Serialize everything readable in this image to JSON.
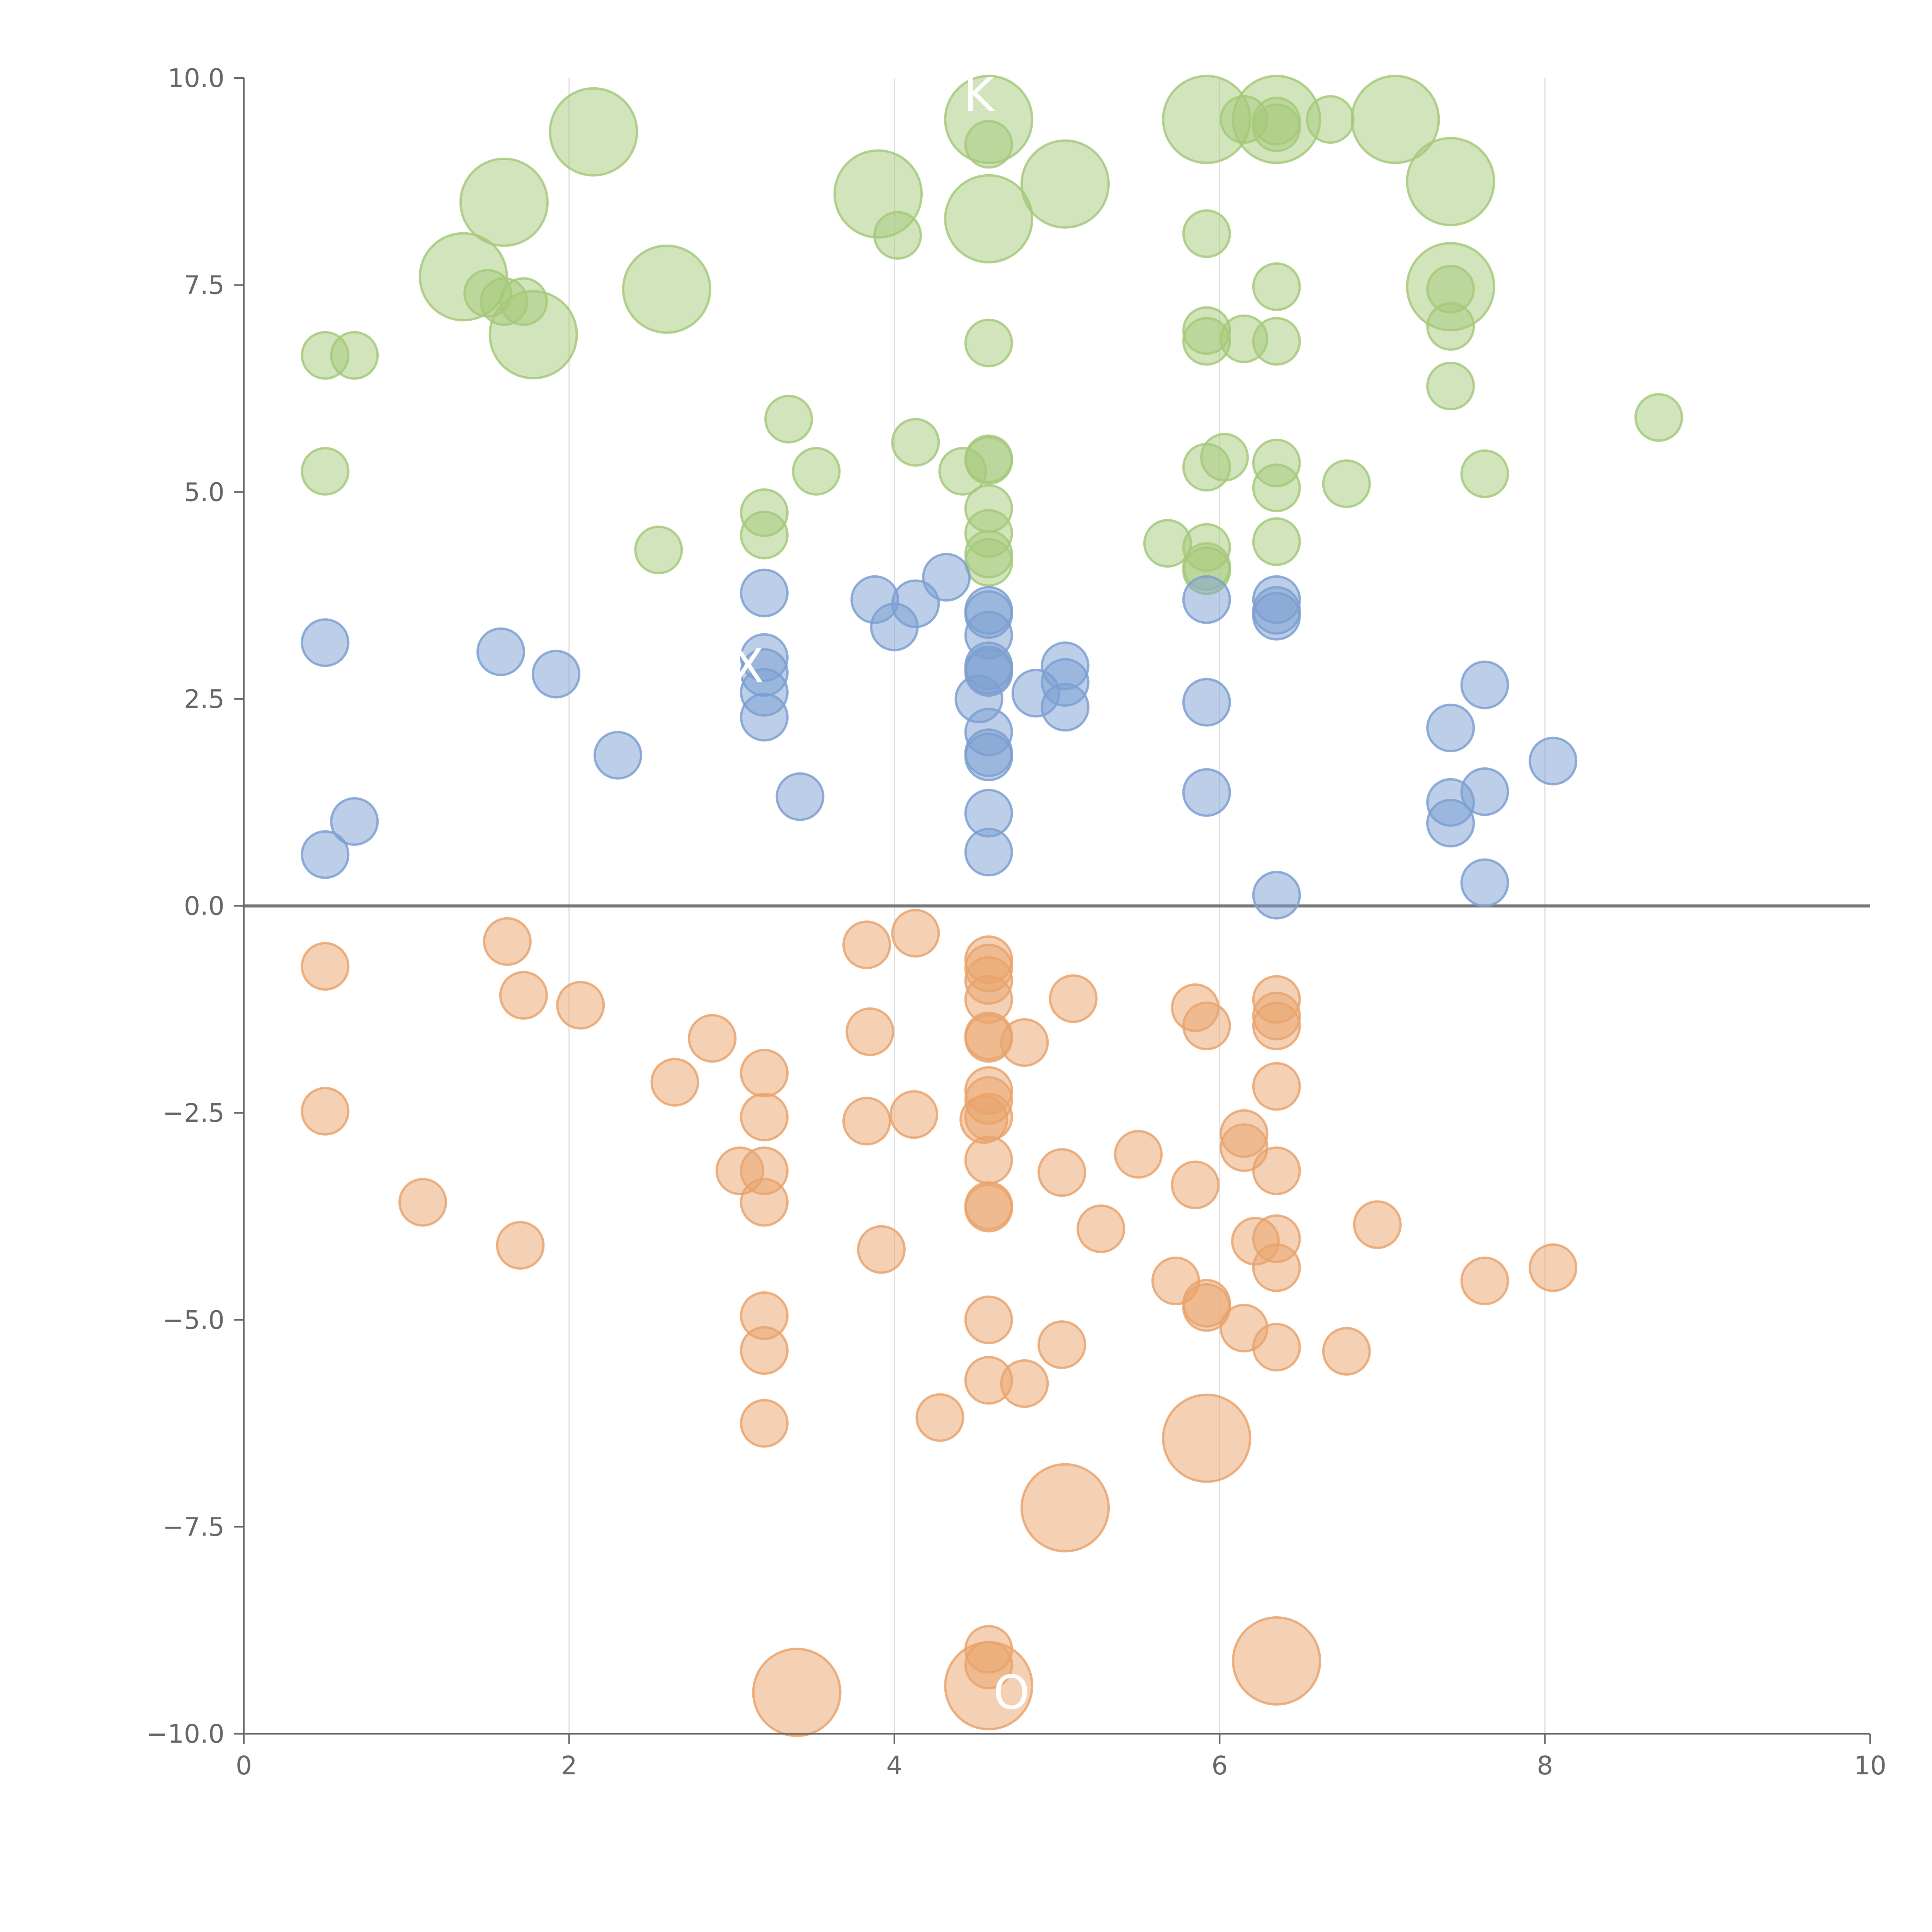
{
  "chart_data": {
    "type": "scatter",
    "title": "",
    "xlabel": "",
    "ylabel": "",
    "xlim": [
      0,
      10
    ],
    "ylim": [
      -10,
      10
    ],
    "xticks": [
      "0",
      "2",
      "4",
      "6",
      "8",
      "10"
    ],
    "yticks": [
      "10.0",
      "7.5",
      "5.0",
      "2.5",
      "0.0",
      "−2.5",
      "−5.0",
      "−7.5",
      "−10.0"
    ],
    "grid": "vertical",
    "legend": "none",
    "colors": {
      "green": "#a6c97a",
      "blue": "#7c9fd1",
      "orange": "#e9a36c",
      "axis": "#666666",
      "zero_line": "#777777",
      "grid": "#dddddd"
    },
    "series": [
      {
        "color_key": "green",
        "points": [
          {
            "x": 2.15,
            "y": 9.35,
            "s": 1.5
          },
          {
            "x": 1.6,
            "y": 8.5,
            "s": 1.5
          },
          {
            "x": 1.35,
            "y": 7.6,
            "s": 1.5
          },
          {
            "x": 1.5,
            "y": 7.4,
            "s": 0.8
          },
          {
            "x": 1.6,
            "y": 7.3,
            "s": 0.8
          },
          {
            "x": 1.72,
            "y": 7.3,
            "s": 0.8
          },
          {
            "x": 1.78,
            "y": 6.9,
            "s": 1.5
          },
          {
            "x": 0.5,
            "y": 6.65,
            "s": 0.8
          },
          {
            "x": 0.68,
            "y": 6.65,
            "s": 0.8
          },
          {
            "x": 0.5,
            "y": 5.25,
            "s": 0.8
          },
          {
            "x": 2.6,
            "y": 7.45,
            "s": 1.5
          },
          {
            "x": 2.55,
            "y": 4.3,
            "s": 0.8
          },
          {
            "x": 3.35,
            "y": 5.88,
            "s": 0.8
          },
          {
            "x": 3.52,
            "y": 5.25,
            "s": 0.8
          },
          {
            "x": 3.2,
            "y": 4.75,
            "s": 0.8
          },
          {
            "x": 3.2,
            "y": 4.48,
            "s": 0.8
          },
          {
            "x": 3.9,
            "y": 8.6,
            "s": 1.5
          },
          {
            "x": 4.02,
            "y": 8.1,
            "s": 0.8
          },
          {
            "x": 4.13,
            "y": 5.6,
            "s": 0.8
          },
          {
            "x": 4.42,
            "y": 5.25,
            "s": 0.8
          },
          {
            "x": 4.58,
            "y": 9.5,
            "s": 1.5
          },
          {
            "x": 4.58,
            "y": 9.2,
            "s": 0.8
          },
          {
            "x": 4.58,
            "y": 8.3,
            "s": 1.5
          },
          {
            "x": 4.58,
            "y": 6.8,
            "s": 0.8
          },
          {
            "x": 4.58,
            "y": 5.4,
            "s": 0.8
          },
          {
            "x": 4.58,
            "y": 5.38,
            "s": 0.8
          },
          {
            "x": 4.58,
            "y": 4.8,
            "s": 0.8
          },
          {
            "x": 4.58,
            "y": 4.5,
            "s": 0.8
          },
          {
            "x": 4.58,
            "y": 4.25,
            "s": 0.8
          },
          {
            "x": 4.58,
            "y": 4.15,
            "s": 0.8
          },
          {
            "x": 5.05,
            "y": 8.72,
            "s": 1.5
          },
          {
            "x": 5.68,
            "y": 4.38,
            "s": 0.8
          },
          {
            "x": 5.92,
            "y": 9.5,
            "s": 1.5
          },
          {
            "x": 5.92,
            "y": 8.12,
            "s": 0.8
          },
          {
            "x": 5.92,
            "y": 6.95,
            "s": 0.8
          },
          {
            "x": 5.92,
            "y": 6.82,
            "s": 0.8
          },
          {
            "x": 5.92,
            "y": 5.3,
            "s": 0.8
          },
          {
            "x": 5.92,
            "y": 4.33,
            "s": 0.8
          },
          {
            "x": 5.92,
            "y": 4.1,
            "s": 0.8
          },
          {
            "x": 5.92,
            "y": 4.05,
            "s": 0.8
          },
          {
            "x": 6.03,
            "y": 5.42,
            "s": 0.8
          },
          {
            "x": 6.15,
            "y": 9.5,
            "s": 0.8
          },
          {
            "x": 6.15,
            "y": 6.85,
            "s": 0.8
          },
          {
            "x": 6.35,
            "y": 9.5,
            "s": 1.5
          },
          {
            "x": 6.35,
            "y": 9.48,
            "s": 0.8
          },
          {
            "x": 6.35,
            "y": 9.4,
            "s": 0.8
          },
          {
            "x": 6.35,
            "y": 7.48,
            "s": 0.8
          },
          {
            "x": 6.35,
            "y": 6.82,
            "s": 0.8
          },
          {
            "x": 6.35,
            "y": 5.35,
            "s": 0.8
          },
          {
            "x": 6.35,
            "y": 5.05,
            "s": 0.8
          },
          {
            "x": 6.35,
            "y": 4.4,
            "s": 0.8
          },
          {
            "x": 6.68,
            "y": 9.5,
            "s": 0.8
          },
          {
            "x": 6.78,
            "y": 5.1,
            "s": 0.8
          },
          {
            "x": 7.08,
            "y": 9.5,
            "s": 1.5
          },
          {
            "x": 7.42,
            "y": 8.75,
            "s": 1.5
          },
          {
            "x": 7.42,
            "y": 7.48,
            "s": 1.5
          },
          {
            "x": 7.42,
            "y": 7.45,
            "s": 0.8
          },
          {
            "x": 7.42,
            "y": 7.0,
            "s": 0.8
          },
          {
            "x": 7.42,
            "y": 6.28,
            "s": 0.8
          },
          {
            "x": 7.63,
            "y": 5.22,
            "s": 0.8
          },
          {
            "x": 8.7,
            "y": 5.9,
            "s": 0.8
          }
        ]
      },
      {
        "color_key": "blue",
        "points": [
          {
            "x": 0.5,
            "y": 3.18,
            "s": 0.8
          },
          {
            "x": 0.5,
            "y": 0.62,
            "s": 0.8
          },
          {
            "x": 0.68,
            "y": 1.02,
            "s": 0.8
          },
          {
            "x": 1.58,
            "y": 3.07,
            "s": 0.8
          },
          {
            "x": 1.92,
            "y": 2.8,
            "s": 0.8
          },
          {
            "x": 2.3,
            "y": 1.82,
            "s": 0.8
          },
          {
            "x": 3.2,
            "y": 3.78,
            "s": 0.8
          },
          {
            "x": 3.2,
            "y": 3.0,
            "s": 0.8
          },
          {
            "x": 3.2,
            "y": 2.82,
            "s": 0.8
          },
          {
            "x": 3.2,
            "y": 2.58,
            "s": 0.8
          },
          {
            "x": 3.2,
            "y": 2.28,
            "s": 0.8
          },
          {
            "x": 3.42,
            "y": 1.32,
            "s": 0.8
          },
          {
            "x": 3.88,
            "y": 3.7,
            "s": 0.8
          },
          {
            "x": 4.0,
            "y": 3.37,
            "s": 0.8
          },
          {
            "x": 4.13,
            "y": 3.65,
            "s": 0.8
          },
          {
            "x": 4.32,
            "y": 3.97,
            "s": 0.8
          },
          {
            "x": 4.58,
            "y": 3.57,
            "s": 0.8
          },
          {
            "x": 4.58,
            "y": 3.52,
            "s": 0.8
          },
          {
            "x": 4.58,
            "y": 3.27,
            "s": 0.8
          },
          {
            "x": 4.58,
            "y": 2.9,
            "s": 0.8
          },
          {
            "x": 4.58,
            "y": 2.85,
            "s": 0.8
          },
          {
            "x": 4.58,
            "y": 2.82,
            "s": 0.8
          },
          {
            "x": 4.52,
            "y": 2.5,
            "s": 0.8
          },
          {
            "x": 4.58,
            "y": 2.1,
            "s": 0.8
          },
          {
            "x": 4.58,
            "y": 1.85,
            "s": 0.8
          },
          {
            "x": 4.58,
            "y": 1.8,
            "s": 0.8
          },
          {
            "x": 4.58,
            "y": 1.12,
            "s": 0.8
          },
          {
            "x": 4.58,
            "y": 0.65,
            "s": 0.8
          },
          {
            "x": 4.87,
            "y": 2.57,
            "s": 0.8
          },
          {
            "x": 5.05,
            "y": 2.9,
            "s": 0.8
          },
          {
            "x": 5.05,
            "y": 2.7,
            "s": 0.8
          },
          {
            "x": 5.05,
            "y": 2.4,
            "s": 0.8
          },
          {
            "x": 5.92,
            "y": 3.7,
            "s": 0.8
          },
          {
            "x": 5.92,
            "y": 2.46,
            "s": 0.8
          },
          {
            "x": 5.92,
            "y": 1.37,
            "s": 0.8
          },
          {
            "x": 6.35,
            "y": 3.7,
            "s": 0.8
          },
          {
            "x": 6.35,
            "y": 3.57,
            "s": 0.8
          },
          {
            "x": 6.35,
            "y": 3.5,
            "s": 0.8
          },
          {
            "x": 6.35,
            "y": 0.13,
            "s": 0.8
          },
          {
            "x": 7.42,
            "y": 2.15,
            "s": 0.8
          },
          {
            "x": 7.42,
            "y": 1.25,
            "s": 0.8
          },
          {
            "x": 7.42,
            "y": 1.0,
            "s": 0.8
          },
          {
            "x": 7.63,
            "y": 2.67,
            "s": 0.8
          },
          {
            "x": 7.63,
            "y": 1.38,
            "s": 0.8
          },
          {
            "x": 7.63,
            "y": 0.28,
            "s": 0.8
          },
          {
            "x": 8.05,
            "y": 1.75,
            "s": 0.8
          }
        ]
      },
      {
        "color_key": "orange",
        "points": [
          {
            "x": 0.5,
            "y": -0.73,
            "s": 0.8
          },
          {
            "x": 0.5,
            "y": -2.48,
            "s": 0.8
          },
          {
            "x": 1.1,
            "y": -3.58,
            "s": 0.8
          },
          {
            "x": 1.62,
            "y": -0.43,
            "s": 0.8
          },
          {
            "x": 1.72,
            "y": -1.08,
            "s": 0.8
          },
          {
            "x": 1.7,
            "y": -4.1,
            "s": 0.8
          },
          {
            "x": 2.07,
            "y": -1.2,
            "s": 0.8
          },
          {
            "x": 2.65,
            "y": -2.13,
            "s": 0.8
          },
          {
            "x": 2.88,
            "y": -1.6,
            "s": 0.8
          },
          {
            "x": 3.05,
            "y": -3.2,
            "s": 0.8
          },
          {
            "x": 3.2,
            "y": -2.02,
            "s": 0.8
          },
          {
            "x": 3.2,
            "y": -2.55,
            "s": 0.8
          },
          {
            "x": 3.2,
            "y": -3.2,
            "s": 0.8
          },
          {
            "x": 3.2,
            "y": -3.58,
            "s": 0.8
          },
          {
            "x": 3.2,
            "y": -4.95,
            "s": 0.8
          },
          {
            "x": 3.2,
            "y": -5.37,
            "s": 0.8
          },
          {
            "x": 3.2,
            "y": -6.25,
            "s": 0.8
          },
          {
            "x": 3.4,
            "y": -9.5,
            "s": 1.5
          },
          {
            "x": 3.83,
            "y": -0.47,
            "s": 0.8
          },
          {
            "x": 3.85,
            "y": -1.52,
            "s": 0.8
          },
          {
            "x": 3.83,
            "y": -2.6,
            "s": 0.8
          },
          {
            "x": 3.92,
            "y": -4.15,
            "s": 0.8
          },
          {
            "x": 4.12,
            "y": -2.52,
            "s": 0.8
          },
          {
            "x": 4.13,
            "y": -0.33,
            "s": 0.8
          },
          {
            "x": 4.28,
            "y": -6.18,
            "s": 0.8
          },
          {
            "x": 4.58,
            "y": -0.65,
            "s": 0.8
          },
          {
            "x": 4.58,
            "y": -0.75,
            "s": 0.8
          },
          {
            "x": 4.58,
            "y": -0.9,
            "s": 0.8
          },
          {
            "x": 4.58,
            "y": -1.13,
            "s": 0.8
          },
          {
            "x": 4.58,
            "y": -1.57,
            "s": 0.8
          },
          {
            "x": 4.58,
            "y": -1.6,
            "s": 0.8
          },
          {
            "x": 4.58,
            "y": -2.23,
            "s": 0.8
          },
          {
            "x": 4.58,
            "y": -2.35,
            "s": 0.8
          },
          {
            "x": 4.55,
            "y": -2.58,
            "s": 0.8
          },
          {
            "x": 4.58,
            "y": -2.55,
            "s": 0.8
          },
          {
            "x": 4.58,
            "y": -3.07,
            "s": 0.8
          },
          {
            "x": 4.58,
            "y": -3.62,
            "s": 0.8
          },
          {
            "x": 4.58,
            "y": -3.65,
            "s": 0.8
          },
          {
            "x": 4.58,
            "y": -5.0,
            "s": 0.8
          },
          {
            "x": 4.58,
            "y": -5.73,
            "s": 0.8
          },
          {
            "x": 4.58,
            "y": -8.98,
            "s": 0.8
          },
          {
            "x": 4.58,
            "y": -9.17,
            "s": 0.8
          },
          {
            "x": 4.58,
            "y": -9.42,
            "s": 1.5
          },
          {
            "x": 4.8,
            "y": -1.65,
            "s": 0.8
          },
          {
            "x": 4.8,
            "y": -5.77,
            "s": 0.8
          },
          {
            "x": 5.03,
            "y": -3.22,
            "s": 0.8
          },
          {
            "x": 5.03,
            "y": -5.3,
            "s": 0.8
          },
          {
            "x": 5.05,
            "y": -7.27,
            "s": 1.5
          },
          {
            "x": 5.1,
            "y": -1.12,
            "s": 0.8
          },
          {
            "x": 5.27,
            "y": -3.9,
            "s": 0.8
          },
          {
            "x": 5.5,
            "y": -3.0,
            "s": 0.8
          },
          {
            "x": 5.73,
            "y": -4.53,
            "s": 0.8
          },
          {
            "x": 5.85,
            "y": -1.23,
            "s": 0.8
          },
          {
            "x": 5.85,
            "y": -3.37,
            "s": 0.8
          },
          {
            "x": 5.92,
            "y": -1.45,
            "s": 0.8
          },
          {
            "x": 5.92,
            "y": -4.8,
            "s": 0.8
          },
          {
            "x": 5.92,
            "y": -4.85,
            "s": 0.8
          },
          {
            "x": 5.92,
            "y": -6.43,
            "s": 1.5
          },
          {
            "x": 6.15,
            "y": -2.75,
            "s": 0.8
          },
          {
            "x": 6.15,
            "y": -2.92,
            "s": 0.8
          },
          {
            "x": 6.15,
            "y": -5.1,
            "s": 0.8
          },
          {
            "x": 6.22,
            "y": -4.05,
            "s": 0.8
          },
          {
            "x": 6.35,
            "y": -1.13,
            "s": 0.8
          },
          {
            "x": 6.35,
            "y": -1.33,
            "s": 0.8
          },
          {
            "x": 6.35,
            "y": -1.45,
            "s": 0.8
          },
          {
            "x": 6.35,
            "y": -2.18,
            "s": 0.8
          },
          {
            "x": 6.35,
            "y": -3.2,
            "s": 0.8
          },
          {
            "x": 6.35,
            "y": -4.02,
            "s": 0.8
          },
          {
            "x": 6.35,
            "y": -4.37,
            "s": 0.8
          },
          {
            "x": 6.35,
            "y": -5.33,
            "s": 0.8
          },
          {
            "x": 6.35,
            "y": -9.12,
            "s": 1.5
          },
          {
            "x": 6.78,
            "y": -5.38,
            "s": 0.8
          },
          {
            "x": 6.97,
            "y": -3.85,
            "s": 0.8
          },
          {
            "x": 7.63,
            "y": -4.53,
            "s": 0.8
          },
          {
            "x": 8.05,
            "y": -4.37,
            "s": 0.8
          }
        ]
      }
    ],
    "annotations": [
      {
        "text": "K",
        "x": 4.52,
        "y": 9.8
      },
      {
        "text": "X",
        "x": 3.1,
        "y": 2.9
      },
      {
        "text": "O",
        "x": 4.72,
        "y": -9.5
      }
    ]
  }
}
